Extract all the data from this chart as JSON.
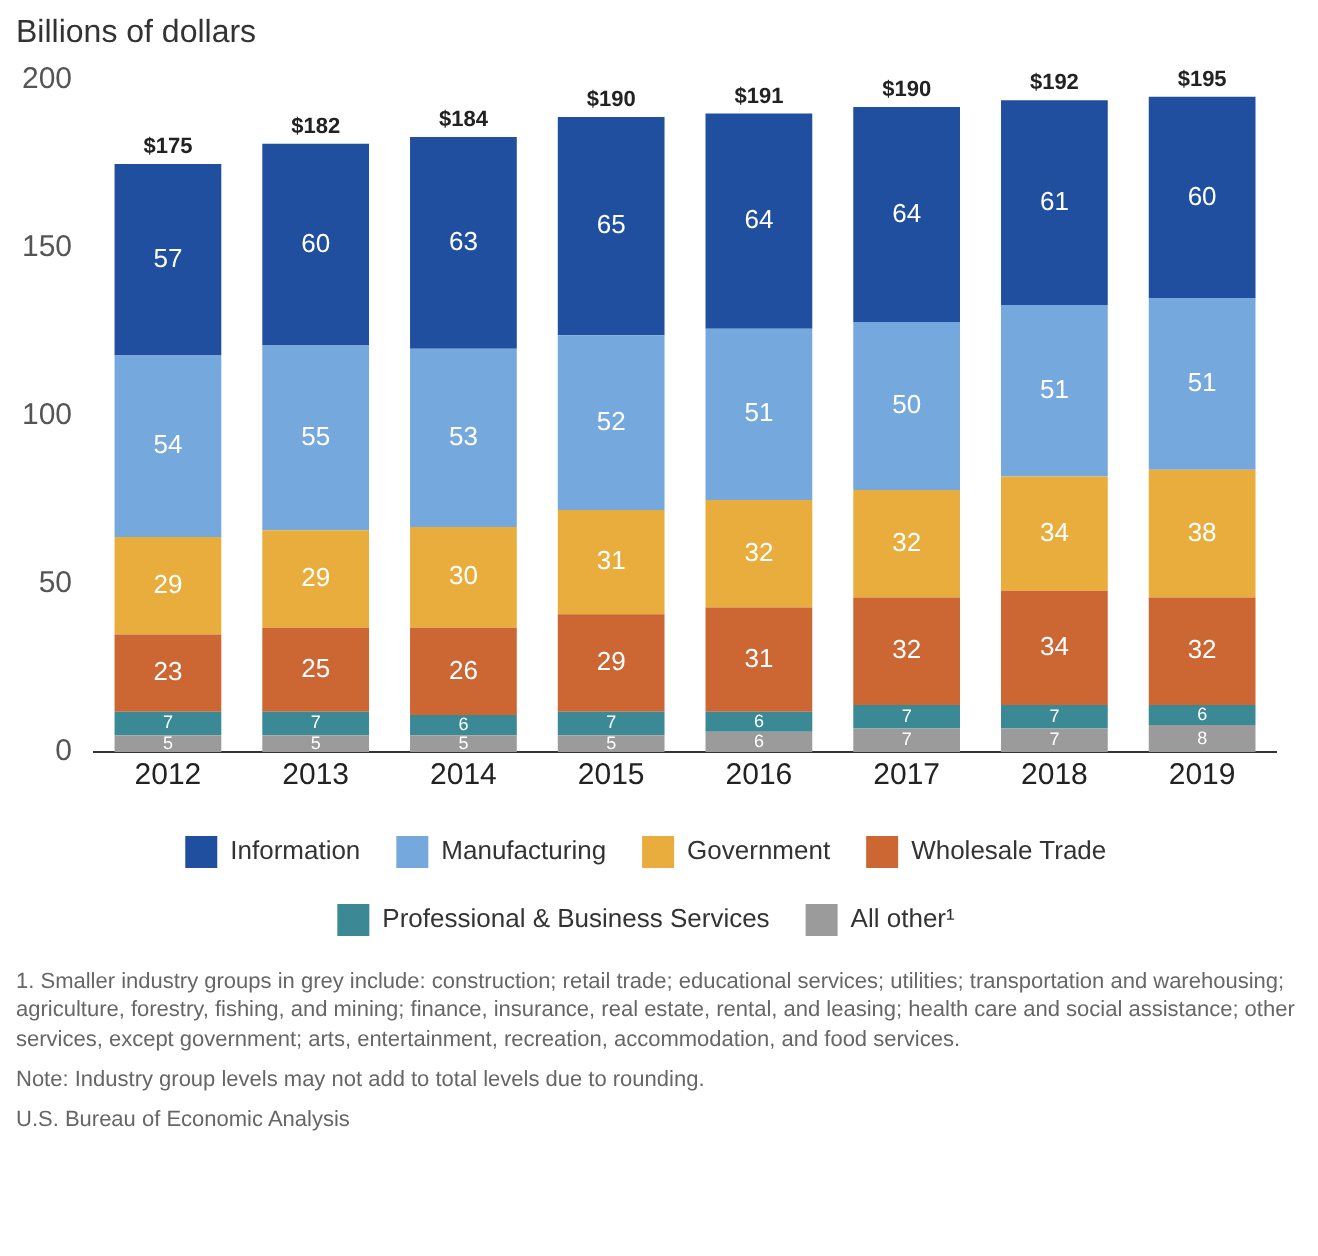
{
  "chart_data": {
    "type": "bar",
    "ylabel": "Billions of dollars",
    "categories": [
      "2012",
      "2013",
      "2014",
      "2015",
      "2016",
      "2017",
      "2018",
      "2019"
    ],
    "stacked": true,
    "series": [
      {
        "name": "All other¹",
        "color": "#9b9b9b",
        "values": [
          5,
          5,
          5,
          5,
          6,
          7,
          7,
          8
        ]
      },
      {
        "name": "Professional & Business Services",
        "color": "#3a8995",
        "values": [
          7,
          7,
          6,
          7,
          6,
          7,
          7,
          6
        ]
      },
      {
        "name": "Wholesale Trade",
        "color": "#cc6633",
        "values": [
          23,
          25,
          26,
          29,
          31,
          32,
          34,
          32
        ]
      },
      {
        "name": "Government",
        "color": "#e9ad3d",
        "values": [
          29,
          29,
          30,
          31,
          32,
          32,
          34,
          38
        ]
      },
      {
        "name": "Manufacturing",
        "color": "#75a8dd",
        "values": [
          54,
          55,
          53,
          52,
          51,
          50,
          51,
          51
        ]
      },
      {
        "name": "Information",
        "color": "#1f4f9e",
        "values": [
          57,
          60,
          63,
          65,
          64,
          64,
          61,
          60
        ]
      }
    ],
    "totals": [
      "$175",
      "$182",
      "$184",
      "$190",
      "$191",
      "$190",
      "$192",
      "$195"
    ],
    "ylim": [
      0,
      200
    ],
    "yticks": [
      0,
      50,
      100,
      150,
      200
    ],
    "grid": false,
    "legend": "bottom",
    "data_labels": true,
    "annotations": [
      "1. Smaller industry groups in grey include: construction; retail trade; educational services; utilities; transportation and warehousing; agriculture, forestry, fishing, and mining; finance, insurance, real estate, rental, and leasing; health care and social assistance; other services, except government; arts, entertainment, recreation, accommodation, and food services.",
      "Note: Industry group levels may not add to total levels due to rounding.",
      "U.S. Bureau of Economic Analysis"
    ]
  }
}
